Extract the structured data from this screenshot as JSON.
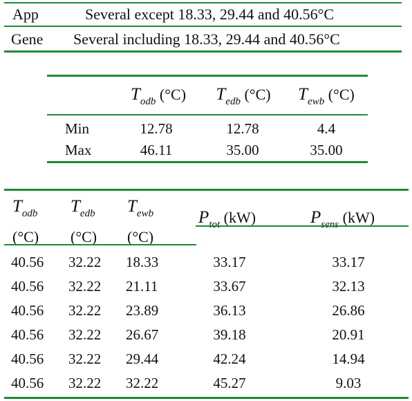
{
  "top_table": {
    "rows": [
      {
        "label": "App",
        "text": "Several except 18.33, 29.44 and 40.56°C"
      },
      {
        "label": "Gene",
        "text": "Several including 18.33, 29.44 and 40.56°C"
      }
    ]
  },
  "range_table": {
    "headers": [
      {
        "symbol": "T",
        "sub": "odb",
        "unit": "(°C)"
      },
      {
        "symbol": "T",
        "sub": "edb",
        "unit": "(°C)"
      },
      {
        "symbol": "T",
        "sub": "ewb",
        "unit": "(°C)"
      }
    ],
    "rows": [
      {
        "label": "Min",
        "values": [
          "12.78",
          "12.78",
          "4.4"
        ]
      },
      {
        "label": "Max",
        "values": [
          "46.11",
          "35.00",
          "35.00"
        ]
      }
    ]
  },
  "data_table": {
    "headers": [
      {
        "symbol": "T",
        "sub": "odb",
        "unit": "(°C)"
      },
      {
        "symbol": "T",
        "sub": "edb",
        "unit": "(°C)"
      },
      {
        "symbol": "T",
        "sub": "ewb",
        "unit": "(°C)"
      },
      {
        "symbol": "P",
        "sub": "tot",
        "unit": "(kW)"
      },
      {
        "symbol": "P",
        "sub": "sens",
        "unit": "(kW)"
      }
    ],
    "rows": [
      [
        "40.56",
        "32.22",
        "18.33",
        "33.17",
        "33.17"
      ],
      [
        "40.56",
        "32.22",
        "21.11",
        "33.67",
        "32.13"
      ],
      [
        "40.56",
        "32.22",
        "23.89",
        "36.13",
        "26.86"
      ],
      [
        "40.56",
        "32.22",
        "26.67",
        "39.18",
        "20.91"
      ],
      [
        "40.56",
        "32.22",
        "29.44",
        "42.24",
        "14.94"
      ],
      [
        "40.56",
        "32.22",
        "32.22",
        "45.27",
        "9.03"
      ]
    ]
  },
  "colors": {
    "rule": "#1e8a35",
    "text": "#111111"
  }
}
